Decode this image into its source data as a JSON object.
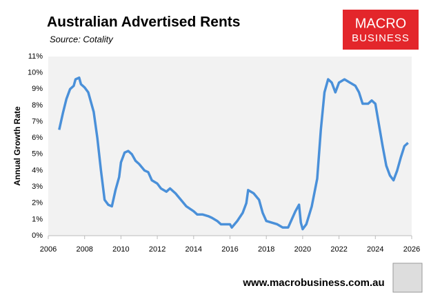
{
  "chart_data": {
    "type": "line",
    "title": "Australian Advertised Rents",
    "subtitle": "Source: Cotality",
    "y_label": "Annual Growth Rate",
    "x": [
      2006.6,
      2006.8,
      2007.0,
      2007.2,
      2007.4,
      2007.5,
      2007.7,
      2007.8,
      2008.0,
      2008.2,
      2008.5,
      2008.7,
      2008.9,
      2009.1,
      2009.3,
      2009.5,
      2009.7,
      2009.9,
      2010.0,
      2010.2,
      2010.4,
      2010.6,
      2010.8,
      2011.0,
      2011.3,
      2011.5,
      2011.7,
      2012.0,
      2012.2,
      2012.5,
      2012.7,
      2013.0,
      2013.3,
      2013.6,
      2014.0,
      2014.2,
      2014.5,
      2014.8,
      2015.0,
      2015.3,
      2015.5,
      2015.8,
      2016.0,
      2016.1,
      2016.4,
      2016.7,
      2016.9,
      2017.0,
      2017.3,
      2017.6,
      2017.8,
      2018.0,
      2018.3,
      2018.6,
      2018.9,
      2019.2,
      2019.4,
      2019.6,
      2019.8,
      2019.9,
      2020.0,
      2020.2,
      2020.5,
      2020.8,
      2021.0,
      2021.2,
      2021.4,
      2021.6,
      2021.8,
      2022.0,
      2022.3,
      2022.6,
      2022.9,
      2023.1,
      2023.3,
      2023.6,
      2023.8,
      2024.0,
      2024.2,
      2024.4,
      2024.6,
      2024.8,
      2025.0,
      2025.2,
      2025.4,
      2025.6,
      2025.8
    ],
    "series": [
      {
        "name": "Annual Growth Rate",
        "color": "#4a90d9",
        "values": [
          6.5,
          7.5,
          8.4,
          9.0,
          9.2,
          9.6,
          9.7,
          9.3,
          9.1,
          8.8,
          7.6,
          6.0,
          4.0,
          2.2,
          1.9,
          1.8,
          2.8,
          3.6,
          4.5,
          5.1,
          5.2,
          5.0,
          4.6,
          4.4,
          4.0,
          3.9,
          3.4,
          3.2,
          2.9,
          2.7,
          2.9,
          2.6,
          2.2,
          1.8,
          1.5,
          1.3,
          1.3,
          1.2,
          1.1,
          0.9,
          0.7,
          0.7,
          0.7,
          0.5,
          0.9,
          1.4,
          2.0,
          2.8,
          2.6,
          2.2,
          1.4,
          0.9,
          0.8,
          0.7,
          0.5,
          0.5,
          1.0,
          1.5,
          1.9,
          0.8,
          0.4,
          0.7,
          1.8,
          3.5,
          6.5,
          8.8,
          9.6,
          9.4,
          8.8,
          9.4,
          9.6,
          9.4,
          9.2,
          8.8,
          8.1,
          8.1,
          8.3,
          8.1,
          6.8,
          5.5,
          4.3,
          3.7,
          3.4,
          4.0,
          4.8,
          5.5,
          5.7
        ]
      }
    ],
    "xlim": [
      2006,
      2026
    ],
    "xticks": [
      2006,
      2008,
      2010,
      2012,
      2014,
      2016,
      2018,
      2020,
      2022,
      2024,
      2026
    ],
    "ylim": [
      0,
      11
    ],
    "yticks": [
      {
        "value": 0,
        "label": "0%"
      },
      {
        "value": 1,
        "label": "1%"
      },
      {
        "value": 2,
        "label": "2%"
      },
      {
        "value": 3,
        "label": "3%"
      },
      {
        "value": 4,
        "label": "4%"
      },
      {
        "value": 5,
        "label": "5%"
      },
      {
        "value": 6,
        "label": "6%"
      },
      {
        "value": 7,
        "label": "7%"
      },
      {
        "value": 8,
        "label": "8%"
      },
      {
        "value": 9,
        "label": "9%"
      },
      {
        "value": 10,
        "label": "10%"
      },
      {
        "value": 11,
        "label": "11%"
      }
    ],
    "grid": false
  },
  "logo": {
    "line1": "MACRO",
    "line2": "BUSINESS"
  },
  "footer": "www.macrobusiness.com.au"
}
